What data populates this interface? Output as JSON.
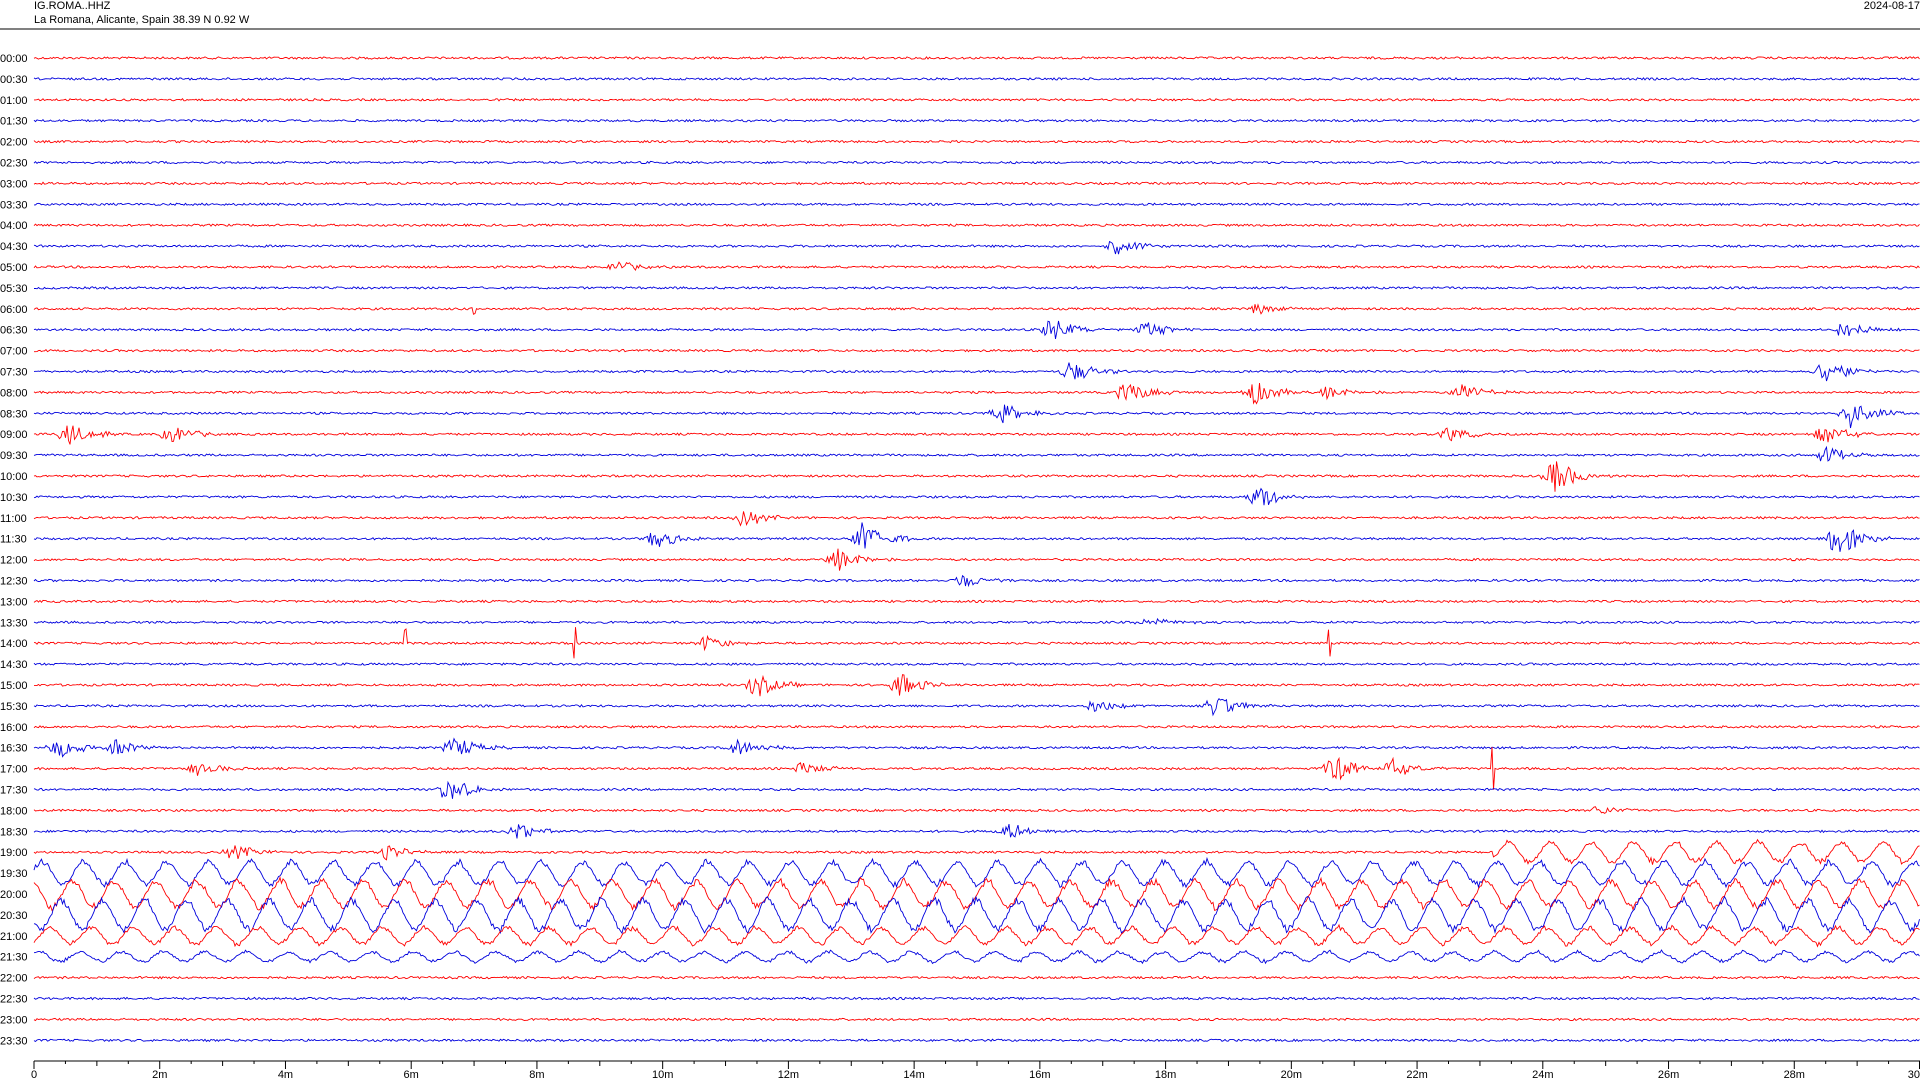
{
  "header": {
    "station": "IG.ROMA..HHZ",
    "location": "La Romana, Alicante, Spain  38.39 N 0.92 W",
    "date": "2024-08-17"
  },
  "colors": {
    "even_trace": "#ff0000",
    "odd_trace": "#0000dd",
    "axis": "#000000"
  },
  "chart_data": {
    "type": "line",
    "title": "",
    "xlabel": "",
    "ylabel": "",
    "x_unit": "minutes",
    "xlim": [
      0,
      30
    ],
    "x_ticks": [
      0,
      2,
      4,
      6,
      8,
      10,
      12,
      14,
      16,
      18,
      20,
      22,
      24,
      26,
      28,
      30
    ],
    "x_tick_labels": [
      "0",
      "2m",
      "4m",
      "6m",
      "8m",
      "10m",
      "12m",
      "14m",
      "16m",
      "18m",
      "20m",
      "22m",
      "24m",
      "26m",
      "28m",
      "30"
    ],
    "row_labels": [
      "00:00",
      "00:30",
      "01:00",
      "01:30",
      "02:00",
      "02:30",
      "03:00",
      "03:30",
      "04:00",
      "04:30",
      "05:00",
      "05:30",
      "06:00",
      "06:30",
      "07:00",
      "07:30",
      "08:00",
      "08:30",
      "09:00",
      "09:30",
      "10:00",
      "10:30",
      "11:00",
      "11:30",
      "12:00",
      "12:30",
      "13:00",
      "13:30",
      "14:00",
      "14:30",
      "15:00",
      "15:30",
      "16:00",
      "16:30",
      "17:00",
      "17:30",
      "18:00",
      "18:30",
      "19:00",
      "19:30",
      "20:00",
      "20:30",
      "21:00",
      "21:30",
      "22:00",
      "22:30",
      "23:00",
      "23:30"
    ],
    "events": [
      {
        "row": "04:30",
        "minute": 17.2,
        "amplitude": 9
      },
      {
        "row": "05:00",
        "minute": 9.3,
        "amplitude": 6
      },
      {
        "row": "06:00",
        "minute": 19.5,
        "amplitude": 6
      },
      {
        "row": "06:30",
        "minute": 16.2,
        "amplitude": 12
      },
      {
        "row": "06:30",
        "minute": 17.7,
        "amplitude": 9
      },
      {
        "row": "06:30",
        "minute": 28.8,
        "amplitude": 10
      },
      {
        "row": "07:30",
        "minute": 16.5,
        "amplitude": 12
      },
      {
        "row": "07:30",
        "minute": 28.5,
        "amplitude": 14
      },
      {
        "row": "08:00",
        "minute": 17.4,
        "amplitude": 12
      },
      {
        "row": "08:00",
        "minute": 19.4,
        "amplitude": 14
      },
      {
        "row": "08:00",
        "minute": 20.6,
        "amplitude": 7
      },
      {
        "row": "08:00",
        "minute": 22.7,
        "amplitude": 9
      },
      {
        "row": "08:30",
        "minute": 15.4,
        "amplitude": 10
      },
      {
        "row": "08:30",
        "minute": 28.9,
        "amplitude": 15
      },
      {
        "row": "09:00",
        "minute": 0.55,
        "amplitude": 12
      },
      {
        "row": "09:00",
        "minute": 2.2,
        "amplitude": 9
      },
      {
        "row": "09:00",
        "minute": 22.5,
        "amplitude": 8
      },
      {
        "row": "09:00",
        "minute": 28.5,
        "amplitude": 10
      },
      {
        "row": "09:30",
        "minute": 28.5,
        "amplitude": 9
      },
      {
        "row": "10:00",
        "minute": 24.2,
        "amplitude": 18
      },
      {
        "row": "10:30",
        "minute": 19.5,
        "amplitude": 12
      },
      {
        "row": "11:00",
        "minute": 11.3,
        "amplitude": 9
      },
      {
        "row": "11:30",
        "minute": 9.9,
        "amplitude": 10
      },
      {
        "row": "11:30",
        "minute": 13.2,
        "amplitude": 18
      },
      {
        "row": "11:30",
        "minute": 28.7,
        "amplitude": 20
      },
      {
        "row": "12:00",
        "minute": 12.8,
        "amplitude": 12
      },
      {
        "row": "12:30",
        "minute": 14.8,
        "amplitude": 8
      },
      {
        "row": "13:30",
        "minute": 17.7,
        "amplitude": 6
      },
      {
        "row": "14:00",
        "minute": 10.7,
        "amplitude": 8
      },
      {
        "row": "15:00",
        "minute": 11.5,
        "amplitude": 12
      },
      {
        "row": "15:00",
        "minute": 13.8,
        "amplitude": 12
      },
      {
        "row": "15:30",
        "minute": 16.9,
        "amplitude": 8
      },
      {
        "row": "15:30",
        "minute": 18.8,
        "amplitude": 12
      },
      {
        "row": "16:30",
        "minute": 0.4,
        "amplitude": 10
      },
      {
        "row": "16:30",
        "minute": 1.3,
        "amplitude": 9
      },
      {
        "row": "16:30",
        "minute": 6.7,
        "amplitude": 11
      },
      {
        "row": "16:30",
        "minute": 11.2,
        "amplitude": 9
      },
      {
        "row": "17:00",
        "minute": 2.6,
        "amplitude": 7
      },
      {
        "row": "17:00",
        "minute": 12.2,
        "amplitude": 8
      },
      {
        "row": "17:00",
        "minute": 20.7,
        "amplitude": 14
      },
      {
        "row": "17:00",
        "minute": 21.6,
        "amplitude": 10
      },
      {
        "row": "17:30",
        "minute": 6.6,
        "amplitude": 14
      },
      {
        "row": "18:00",
        "minute": 24.9,
        "amplitude": 5
      },
      {
        "row": "18:30",
        "minute": 7.7,
        "amplitude": 8
      },
      {
        "row": "18:30",
        "minute": 15.5,
        "amplitude": 9
      },
      {
        "row": "19:00",
        "minute": 3.2,
        "amplitude": 8
      },
      {
        "row": "19:00",
        "minute": 5.6,
        "amplitude": 8
      }
    ],
    "spikes": [
      {
        "row": "14:00",
        "minute": 5.9,
        "amplitude": 14
      },
      {
        "row": "14:00",
        "minute": 8.6,
        "amplitude": 16
      },
      {
        "row": "14:00",
        "minute": 20.6,
        "amplitude": 14
      },
      {
        "row": "06:00",
        "minute": 7.0,
        "amplitude": 5
      },
      {
        "row": "17:00",
        "minute": 23.2,
        "amplitude": 22
      }
    ],
    "disturbed_rows": [
      {
        "row": "19:00",
        "from_minute": 23.2,
        "to_minute": 30,
        "amplitude": 12
      },
      {
        "row": "19:30",
        "from_minute": 0,
        "to_minute": 30,
        "amplitude": 14
      },
      {
        "row": "20:00",
        "from_minute": 0,
        "to_minute": 30,
        "amplitude": 16
      },
      {
        "row": "20:30",
        "from_minute": 0,
        "to_minute": 30,
        "amplitude": 18
      },
      {
        "row": "21:00",
        "from_minute": 0,
        "to_minute": 30,
        "amplitude": 10
      },
      {
        "row": "21:30",
        "from_minute": 0,
        "to_minute": 30,
        "amplitude": 6
      }
    ]
  }
}
